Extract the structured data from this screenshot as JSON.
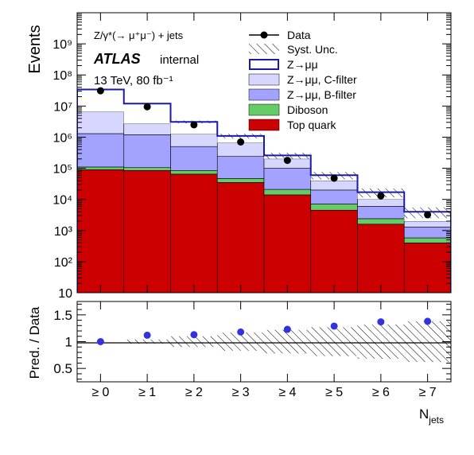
{
  "chart_data": [
    {
      "type": "bar",
      "stacked": true,
      "log_y": true,
      "ylabel": "Events",
      "ylim": [
        10,
        10000000000.0
      ],
      "y_ticks": [
        {
          "value": 10,
          "label": "10"
        },
        {
          "value": 100,
          "label": "10²"
        },
        {
          "value": 1000,
          "label": "10³"
        },
        {
          "value": 10000,
          "label": "10⁴"
        },
        {
          "value": 100000,
          "label": "10⁵"
        },
        {
          "value": 1000000,
          "label": "10⁶"
        },
        {
          "value": 10000000,
          "label": "10⁷"
        },
        {
          "value": 100000000,
          "label": "10⁸"
        },
        {
          "value": 1000000000,
          "label": "10⁹"
        }
      ],
      "categories": [
        "≥ 0",
        "≥ 1",
        "≥ 2",
        "≥ 3",
        "≥ 4",
        "≥ 5",
        "≥ 6",
        "≥ 7"
      ],
      "annotations": {
        "process": "Z/γ*(→ μ⁺μ⁻) + jets",
        "experiment": "ATLAS",
        "status": "internal",
        "energy": "13 TeV, 80 fb⁻¹"
      },
      "series": [
        {
          "name": "Top quark",
          "color": "#cc0000",
          "values": [
            90000,
            85000,
            65000,
            35000,
            14000,
            4500,
            1600,
            400
          ]
        },
        {
          "name": "Diboson",
          "color": "#66cc66",
          "values": [
            20000,
            20000,
            20000,
            12000,
            7000,
            2600,
            800,
            180
          ]
        },
        {
          "name": "Z→μμ, B-filter",
          "color": "#a3a3ff",
          "values": [
            1190000,
            1095000,
            415000,
            193000,
            79000,
            12900,
            3600,
            720
          ]
        },
        {
          "name": "Z→μμ, C-filter",
          "color": "#d6d6ff",
          "values": [
            5200000,
            1500000,
            750000,
            420000,
            100000,
            20000,
            4000,
            700
          ]
        },
        {
          "name": "Z→μμ",
          "color": "#ffffff",
          "edge": "#1a1aaa",
          "values": [
            27500000,
            9300000,
            1850000,
            440000,
            60000,
            20000,
            7000,
            2000
          ]
        }
      ],
      "data": {
        "name": "Data",
        "values": [
          31000000,
          9500000,
          2500000,
          700000,
          180000,
          48000,
          13000,
          3200
        ]
      },
      "syst": {
        "name": "Syst. Unc.",
        "rel": [
          0.0,
          0.04,
          0.1,
          0.17,
          0.22,
          0.27,
          0.32,
          0.38
        ]
      },
      "legend": [
        "Data",
        "Syst. Unc.",
        "Z→μμ",
        "Z→μμ, C-filter",
        "Z→μμ, B-filter",
        "Diboson",
        "Top quark"
      ]
    },
    {
      "type": "scatter",
      "ylabel": "Pred. / Data",
      "xlabel": "N",
      "xlabel_sub": "jets",
      "ylim": [
        0.25,
        1.75
      ],
      "y_ticks": [
        {
          "value": 0.5,
          "label": "0.5"
        },
        {
          "value": 1.0,
          "label": "1"
        },
        {
          "value": 1.5,
          "label": "1.5"
        }
      ],
      "categories": [
        "≥ 0",
        "≥ 1",
        "≥ 2",
        "≥ 3",
        "≥ 4",
        "≥ 5",
        "≥ 6",
        "≥ 7"
      ],
      "values": [
        1.0,
        1.12,
        1.13,
        1.18,
        1.23,
        1.29,
        1.37,
        1.38
      ],
      "syst_rel": [
        0.0,
        0.04,
        0.1,
        0.17,
        0.22,
        0.27,
        0.32,
        0.38
      ],
      "point_color": "#3333dd"
    }
  ]
}
